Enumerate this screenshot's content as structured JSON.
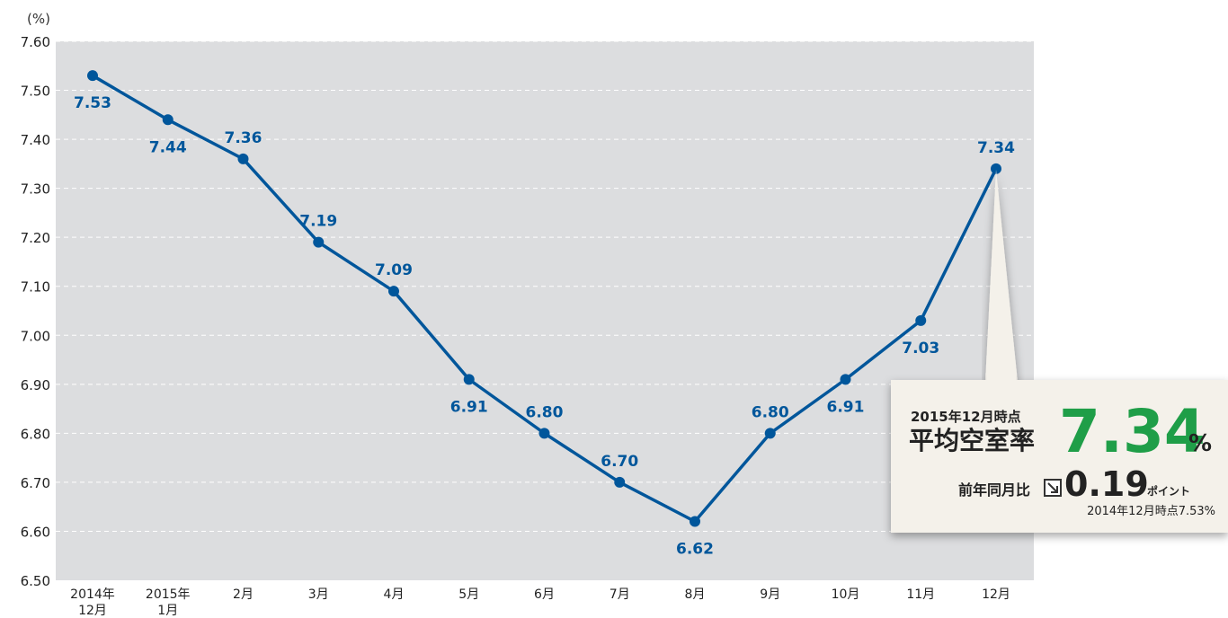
{
  "chart_data": {
    "type": "line",
    "unit_label": "(%)",
    "categories": [
      "2014年\n12月",
      "2015年\n1月",
      "2月",
      "3月",
      "4月",
      "5月",
      "6月",
      "7月",
      "8月",
      "9月",
      "10月",
      "11月",
      "12月"
    ],
    "series": [
      {
        "values": [
          7.53,
          7.44,
          7.36,
          7.19,
          7.09,
          6.91,
          6.8,
          6.7,
          6.62,
          6.8,
          6.91,
          7.03,
          7.34
        ]
      }
    ],
    "data_labels": [
      "7.53",
      "7.44",
      "7.36",
      "7.19",
      "7.09",
      "6.91",
      "6.80",
      "6.70",
      "6.62",
      "6.80",
      "6.91",
      "7.03",
      "7.34"
    ],
    "ylim": [
      6.5,
      7.6
    ],
    "yticks": [
      "6.50",
      "6.60",
      "6.70",
      "6.80",
      "6.90",
      "7.00",
      "7.10",
      "7.20",
      "7.30",
      "7.40",
      "7.50",
      "7.60"
    ],
    "grid": true,
    "colors": {
      "line": "#00569b",
      "plot_bg": "#dcdddf",
      "value": "#1f9e48"
    }
  },
  "callout": {
    "date_label": "2015年12月時点",
    "title": "平均空室率",
    "value": "7.34",
    "unit": "%",
    "yoy_label": "前年同月比",
    "yoy_icon": "down-arrow-icon",
    "yoy_value": "0.19",
    "yoy_unit": "ポイント",
    "prev_note": "2014年12月時点7.53%"
  }
}
